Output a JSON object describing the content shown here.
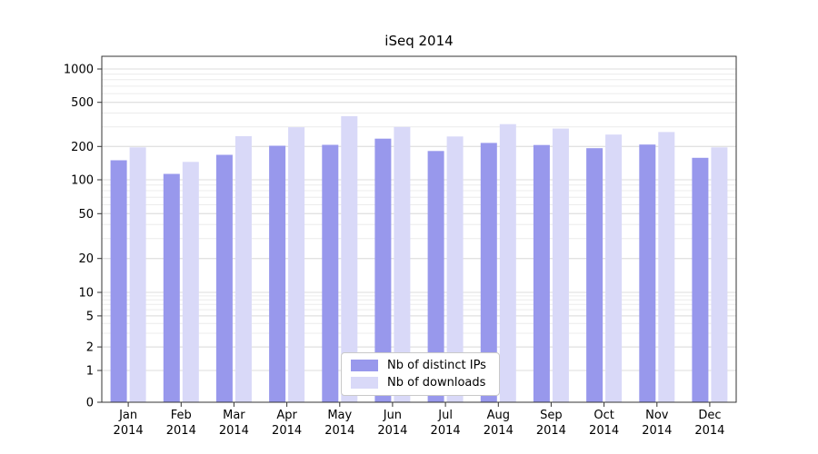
{
  "chart_data": {
    "type": "bar",
    "title": "iSeq 2014",
    "categories": [
      "Jan 2014",
      "Feb 2014",
      "Mar 2014",
      "Apr 2014",
      "May 2014",
      "Jun 2014",
      "Jul 2014",
      "Aug 2014",
      "Sep 2014",
      "Oct 2014",
      "Nov 2014",
      "Dec 2014"
    ],
    "series": [
      {
        "name": "Nb of distinct IPs",
        "color": "#9898ec",
        "values": [
          150,
          113,
          168,
          203,
          207,
          235,
          182,
          215,
          206,
          193,
          208,
          158
        ]
      },
      {
        "name": "Nb of downloads",
        "color": "#d9d9f8",
        "values": [
          196,
          145,
          248,
          298,
          375,
          300,
          246,
          318,
          290,
          256,
          270,
          196
        ]
      }
    ],
    "yscale": "symlog",
    "yticks": [
      0,
      1,
      2,
      5,
      10,
      20,
      50,
      100,
      200,
      500,
      1000
    ],
    "ylim": [
      0,
      1300
    ],
    "grid": true,
    "legend_position": "lower center"
  }
}
